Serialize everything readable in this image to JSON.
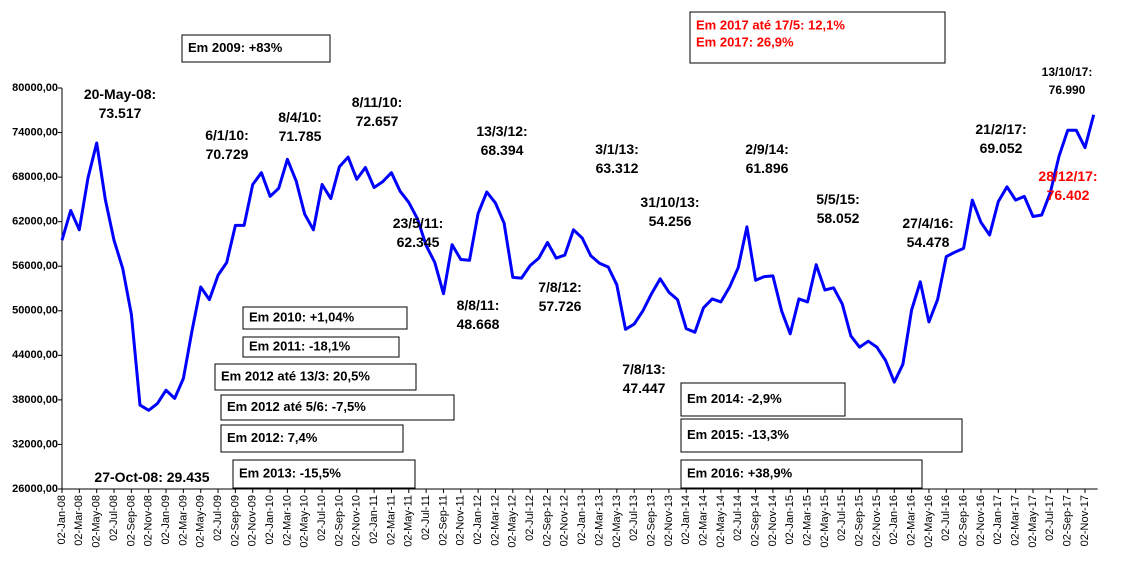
{
  "chart_data": {
    "type": "line",
    "color": "#0000ff",
    "categories": [
      "02-Jan-08",
      null,
      "02-Mar-08",
      null,
      "02-May-08",
      null,
      "02-Jul-08",
      null,
      "02-Sep-08",
      null,
      "02-Nov-08",
      null,
      "02-Jan-09",
      null,
      "02-Mar-09",
      null,
      "02-May-09",
      null,
      "02-Jul-09",
      null,
      "02-Sep-09",
      null,
      "02-Nov-09",
      null,
      "02-Jan-10",
      null,
      "02-Mar-10",
      null,
      "02-May-10",
      null,
      "02-Jul-10",
      null,
      "02-Sep-10",
      null,
      "02-Nov-10",
      null,
      "02-Jan-11",
      null,
      "02-Mar-11",
      null,
      "02-May-11",
      null,
      "02-Jul-11",
      null,
      "02-Sep-11",
      null,
      "02-Nov-11",
      null,
      "02-Jan-12",
      null,
      "02-Mar-12",
      null,
      "02-May-12",
      null,
      "02-Jul-12",
      null,
      "02-Sep-12",
      null,
      "02-Nov-12",
      null,
      "02-Jan-13",
      null,
      "02-Mar-13",
      null,
      "02-May-13",
      null,
      "02-Jul-13",
      null,
      "02-Sep-13",
      null,
      "02-Nov-13",
      null,
      "02-Jan-14",
      null,
      "02-Mar-14",
      null,
      "02-May-14",
      null,
      "02-Jul-14",
      null,
      "02-Sep-14",
      null,
      "02-Nov-14",
      null,
      "02-Jan-15",
      null,
      "02-Mar-15",
      null,
      "02-May-15",
      null,
      "02-Jul-15",
      null,
      "02-Sep-15",
      null,
      "02-Nov-15",
      null,
      "02-Jan-16",
      null,
      "02-Mar-16",
      null,
      "02-May-16",
      null,
      "02-Jul-16",
      null,
      "02-Sep-16",
      null,
      "02-Nov-16",
      null,
      "02-Jan-17",
      null,
      "02-Mar-17",
      null,
      "02-May-17",
      null,
      "02-Jul-17",
      null,
      "02-Sep-17",
      null,
      "02-Nov-17",
      null
    ],
    "values": [
      59500,
      63500,
      60900,
      67900,
      72600,
      65000,
      59500,
      55700,
      49500,
      37300,
      36600,
      37500,
      39300,
      38200,
      40900,
      47300,
      53200,
      51500,
      54800,
      56500,
      61500,
      61500,
      67000,
      68600,
      65400,
      66500,
      70400,
      67500,
      63000,
      60900,
      67000,
      65100,
      69400,
      70700,
      67700,
      69300,
      66600,
      67400,
      68600,
      66100,
      64600,
      62400,
      58800,
      56500,
      52300,
      58900,
      56900,
      56800,
      63100,
      66000,
      64500,
      61800,
      54500,
      54400,
      56100,
      57100,
      59200,
      57100,
      57500,
      60900,
      59800,
      57400,
      56400,
      55900,
      53500,
      47500,
      48200,
      50000,
      52300,
      54300,
      52500,
      51500,
      47600,
      47100,
      50400,
      51600,
      51200,
      53200,
      55800,
      61300,
      54100,
      54600,
      54700,
      50000,
      46900,
      51600,
      51200,
      56200,
      52800,
      53100,
      50900,
      46600,
      45100,
      45900,
      45100,
      43300,
      40400,
      42800,
      50100,
      53900,
      48500,
      51500,
      57300,
      57900,
      58400,
      64900,
      61900,
      60200,
      64700,
      66700,
      64900,
      65400,
      62700,
      62900,
      65900,
      70800,
      74300,
      74300,
      71970,
      76402
    ],
    "ylim": [
      26000,
      80000
    ],
    "yticks": [
      {
        "value": 26000,
        "label": "26000,00"
      },
      {
        "value": 32000,
        "label": "32000,00"
      },
      {
        "value": 38000,
        "label": "38000,00"
      },
      {
        "value": 44000,
        "label": "44000,00"
      },
      {
        "value": 50000,
        "label": "50000,00"
      },
      {
        "value": 56000,
        "label": "56000,00"
      },
      {
        "value": 62000,
        "label": "62000,00"
      },
      {
        "value": 68000,
        "label": "68000,00"
      },
      {
        "value": 74000,
        "label": "74000,00"
      },
      {
        "value": 80000,
        "label": "80000,00"
      }
    ],
    "boxes": [
      {
        "lines": [
          "Em 2009: +83%"
        ],
        "color": "#000000"
      },
      {
        "lines": [
          "Em 2010: +1,04%"
        ],
        "color": "#000000"
      },
      {
        "lines": [
          "Em 2011: -18,1%"
        ],
        "color": "#000000"
      },
      {
        "lines": [
          "Em 2012 até 13/3: 20,5%"
        ],
        "color": "#000000"
      },
      {
        "lines": [
          "Em 2012 até 5/6: -7,5%"
        ],
        "color": "#000000"
      },
      {
        "lines": [
          "Em 2012:  7,4%"
        ],
        "color": "#000000"
      },
      {
        "lines": [
          "Em 2013: -15,5%"
        ],
        "color": "#000000"
      },
      {
        "lines": [
          "Em 2014: -2,9%"
        ],
        "color": "#000000"
      },
      {
        "lines": [
          "Em 2015: -13,3%"
        ],
        "color": "#000000"
      },
      {
        "lines": [
          "Em 2016: +38,9%"
        ],
        "color": "#000000"
      },
      {
        "lines": [
          "Em 2017 até 17/5: 12,1%",
          "Em 2017: 26,9%"
        ],
        "color": "#ff0000"
      }
    ],
    "point_labels": [
      {
        "lines": [
          "20-May-08:",
          "73.517"
        ],
        "color": "#000000"
      },
      {
        "lines": [
          "6/1/10:",
          "70.729"
        ],
        "color": "#000000"
      },
      {
        "lines": [
          "8/4/10:",
          "71.785"
        ],
        "color": "#000000"
      },
      {
        "lines": [
          "8/11/10:",
          "72.657"
        ],
        "color": "#000000"
      },
      {
        "lines": [
          "13/3/12:",
          "68.394"
        ],
        "color": "#000000"
      },
      {
        "lines": [
          "3/1/13:",
          "63.312"
        ],
        "color": "#000000"
      },
      {
        "lines": [
          "2/9/14:",
          "61.896"
        ],
        "color": "#000000"
      },
      {
        "lines": [
          "31/10/13:",
          "54.256"
        ],
        "color": "#000000"
      },
      {
        "lines": [
          "5/5/15:",
          "58.052"
        ],
        "color": "#000000"
      },
      {
        "lines": [
          "23/5/11:",
          "62.345"
        ],
        "color": "#000000"
      },
      {
        "lines": [
          "27/4/16:",
          "54.478"
        ],
        "color": "#000000"
      },
      {
        "lines": [
          "21/2/17:",
          "69.052"
        ],
        "color": "#000000"
      },
      {
        "lines": [
          "13/10/17:",
          "76.990"
        ],
        "color": "#000000"
      },
      {
        "lines": [
          "28/12/17:",
          "76.402"
        ],
        "color": "#ff0000"
      },
      {
        "lines": [
          "8/8/11:",
          "48.668"
        ],
        "color": "#000000"
      },
      {
        "lines": [
          "7/8/12:",
          "57.726"
        ],
        "color": "#000000"
      },
      {
        "lines": [
          "7/8/13:",
          "47.447"
        ],
        "color": "#000000"
      },
      {
        "lines": [
          "27-Oct-08: 29.435"
        ],
        "color": "#000000"
      }
    ]
  }
}
